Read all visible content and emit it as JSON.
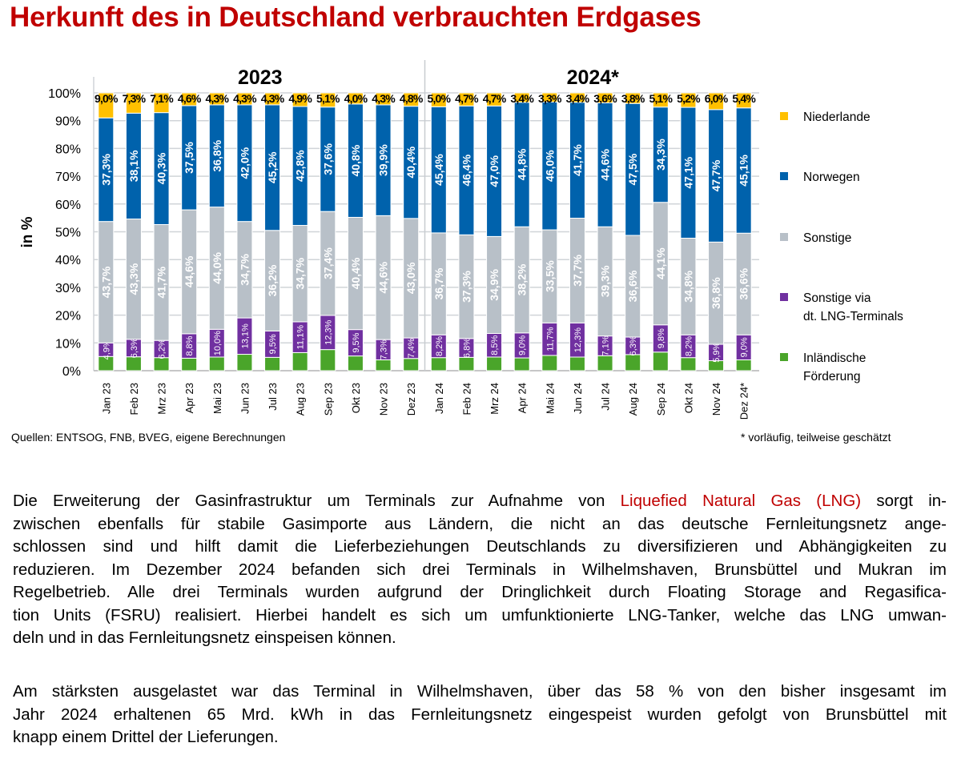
{
  "title": "Herkunft des in Deutschland verbrauchten Erdgases",
  "chart_data": {
    "type": "bar",
    "stacked": true,
    "ylabel": "in %",
    "ylim": [
      0,
      100
    ],
    "yticks": [
      "0%",
      "10%",
      "20%",
      "30%",
      "40%",
      "50%",
      "60%",
      "70%",
      "80%",
      "90%",
      "100%"
    ],
    "grid": true,
    "legend_position": "right",
    "groups": [
      {
        "label": "2023",
        "count": 12
      },
      {
        "label": "2024*",
        "count": 12
      }
    ],
    "categories": [
      "Jan 23",
      "Feb 23",
      "Mrz 23",
      "Apr 23",
      "Mai 23",
      "Jun 23",
      "Jul 23",
      "Aug 23",
      "Sep 23",
      "Okt 23",
      "Nov 23",
      "Dez 23",
      "Jan 24",
      "Feb 24",
      "Mrz 24",
      "Apr 24",
      "Mai 24",
      "Jun 24",
      "Jul 24",
      "Aug 24",
      "Sep 24",
      "Okt 24",
      "Nov 24",
      "Dez 24*"
    ],
    "series": [
      {
        "name": "Inländische Förderung",
        "color": "#4aa52a",
        "labeled": false,
        "values": [
          5.1,
          5.0,
          4.7,
          4.5,
          4.9,
          5.9,
          4.8,
          6.5,
          7.6,
          5.3,
          3.9,
          4.4,
          4.7,
          4.8,
          4.9,
          4.6,
          5.5,
          4.9,
          5.4,
          5.8,
          6.7,
          4.7,
          3.6,
          3.9
        ]
      },
      {
        "name": "Sonstige via dt. LNG-Terminals",
        "color": "#7030a0",
        "labeled": true,
        "values": [
          4.9,
          6.3,
          6.2,
          8.8,
          10.0,
          13.1,
          9.5,
          11.1,
          12.3,
          9.5,
          7.3,
          7.4,
          8.2,
          6.8,
          8.5,
          9.0,
          11.7,
          12.3,
          7.1,
          6.3,
          9.8,
          8.2,
          5.9,
          9.0
        ]
      },
      {
        "name": "Sonstige",
        "color": "#b8c0c8",
        "labeled": true,
        "values": [
          43.7,
          43.3,
          41.7,
          44.6,
          44.0,
          34.7,
          36.2,
          34.7,
          37.4,
          40.4,
          44.6,
          43.0,
          36.7,
          37.3,
          34.9,
          38.2,
          33.5,
          37.7,
          39.3,
          36.6,
          44.1,
          34.8,
          36.8,
          36.6
        ]
      },
      {
        "name": "Norwegen",
        "color": "#0062ac",
        "labeled": true,
        "values": [
          37.3,
          38.1,
          40.3,
          37.5,
          36.8,
          42.0,
          45.2,
          42.8,
          37.6,
          40.8,
          39.9,
          40.4,
          45.4,
          46.4,
          47.0,
          44.8,
          46.0,
          41.7,
          44.6,
          47.5,
          34.3,
          47.1,
          47.7,
          45.1
        ]
      },
      {
        "name": "Niederlande",
        "color": "#ffc000",
        "labeled": true,
        "values": [
          9.0,
          7.3,
          7.1,
          4.6,
          4.3,
          4.3,
          4.3,
          4.9,
          5.1,
          4.0,
          4.3,
          4.8,
          5.0,
          4.7,
          4.7,
          3.4,
          3.3,
          3.4,
          3.6,
          3.8,
          5.1,
          5.2,
          6.0,
          5.4
        ]
      }
    ],
    "legend": [
      {
        "lines": [
          "Niederlande"
        ],
        "color": "#ffc000"
      },
      {
        "lines": [
          "Norwegen"
        ],
        "color": "#0062ac"
      },
      {
        "lines": [
          "Sonstige"
        ],
        "color": "#b8c0c8"
      },
      {
        "lines": [
          "Sonstige via",
          "dt. LNG-Terminals"
        ],
        "color": "#7030a0"
      },
      {
        "lines": [
          "Inländische",
          "Förderung"
        ],
        "color": "#4aa52a"
      }
    ]
  },
  "sources": "Quellen: ENTSOG, FNB, BVEG, eigene Berechnungen",
  "footnote": "* vorläufig, teilweise geschätzt",
  "paragraph1": {
    "line1_before": "Die Erweiterung der Gasinfrastruktur um Terminals zur Aufnahme von ",
    "line1_highlight": "Liquefied Natural Gas (LNG)",
    "line1_after": " sorgt in-",
    "lines": [
      "zwischen ebenfalls für stabile Gasimporte aus Ländern, die nicht an das deutsche Fernleitungsnetz ange-",
      "schlossen sind und hilft damit die Lieferbeziehungen Deutschlands zu diversifizieren und Abhängigkeiten zu",
      "reduzieren. Im Dezember 2024 befanden sich drei Terminals in Wilhelmshaven, Brunsbüttel und Mukran im",
      "Regelbetrieb. Alle drei Terminals wurden aufgrund der Dringlichkeit durch Floating Storage and Regasifica-",
      "tion Units (FSRU) realisiert. Hierbei handelt es sich um umfunktionierte LNG-Tanker, welche das LNG umwan-",
      "deln und in das Fernleitungsnetz einspeisen können."
    ]
  },
  "paragraph2": {
    "lines": [
      "Am stärksten ausgelastet war das Terminal in Wilhelmshaven, über das 58 % von den bisher insgesamt im",
      "Jahr 2024 erhaltenen 65 Mrd. kWh in das Fernleitungsnetz eingespeist wurden gefolgt von Brunsbüttel mit",
      "knapp einem Drittel der Lieferungen."
    ]
  }
}
